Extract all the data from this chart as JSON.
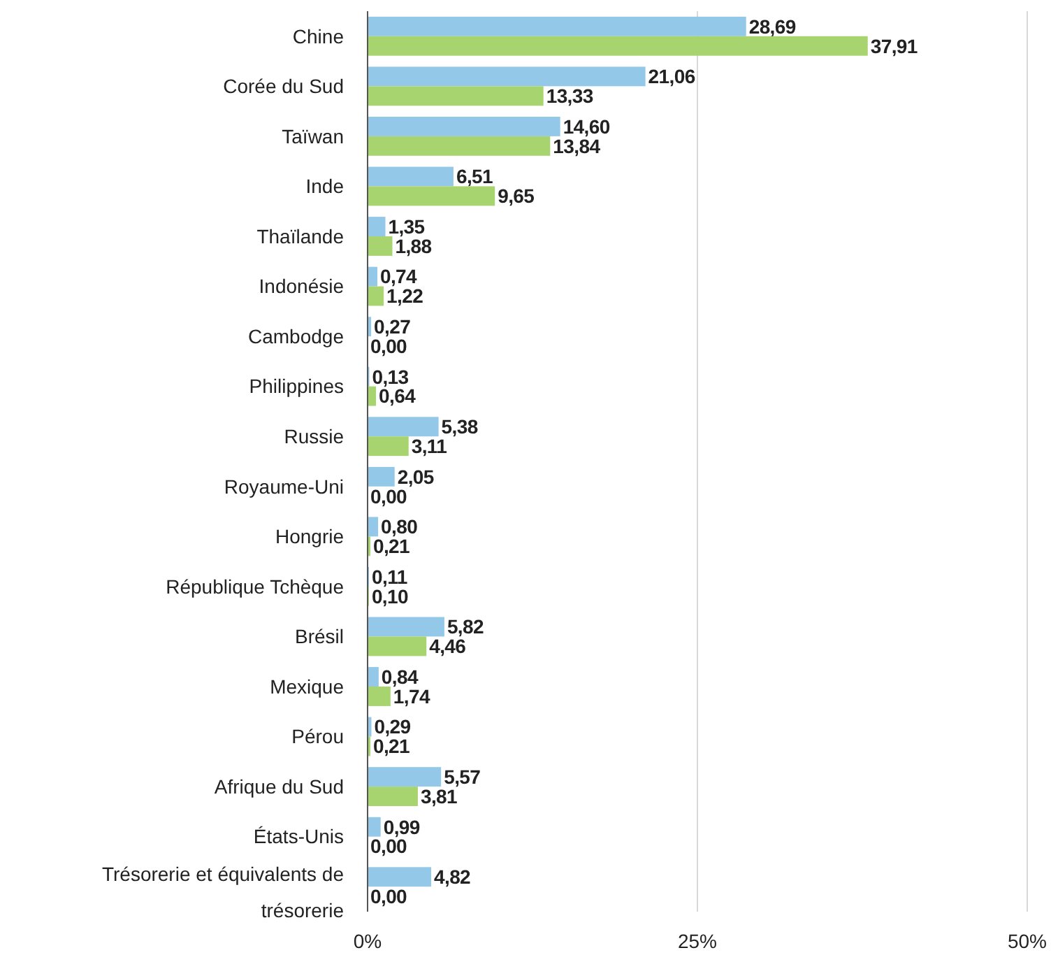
{
  "chart_data": {
    "type": "bar",
    "orientation": "horizontal",
    "categories": [
      "Chine",
      "Corée du Sud",
      "Taïwan",
      "Inde",
      "Thaïlande",
      "Indonésie",
      "Cambodge",
      "Philippines",
      "Russie",
      "Royaume-Uni",
      "Hongrie",
      "République Tchèque",
      "Brésil",
      "Mexique",
      "Pérou",
      "Afrique du Sud",
      "États-Unis",
      "Trésorerie et équivalents de trésorerie"
    ],
    "series": [
      {
        "color": "#94c8e8",
        "values": [
          28.69,
          21.06,
          14.6,
          6.51,
          1.35,
          0.74,
          0.27,
          0.13,
          5.38,
          2.05,
          0.8,
          0.11,
          5.82,
          0.84,
          0.29,
          5.57,
          0.99,
          4.82
        ],
        "value_labels": [
          "28,69",
          "21,06",
          "14,60",
          "6,51",
          "1,35",
          "0,74",
          "0,27",
          "0,13",
          "5,38",
          "2,05",
          "0,80",
          "0,11",
          "5,82",
          "0,84",
          "0,29",
          "5,57",
          "0,99",
          "4,82"
        ]
      },
      {
        "color": "#a8d46f",
        "values": [
          37.91,
          13.33,
          13.84,
          9.65,
          1.88,
          1.22,
          0.0,
          0.64,
          3.11,
          0.0,
          0.21,
          0.1,
          4.46,
          1.74,
          0.21,
          3.81,
          0.0,
          0.0
        ],
        "value_labels": [
          "37,91",
          "13,33",
          "13,84",
          "9,65",
          "1,88",
          "1,22",
          "0,00",
          "0,64",
          "3,11",
          "0,00",
          "0,21",
          "0,10",
          "4,46",
          "1,74",
          "0,21",
          "3,81",
          "0,00",
          "0,00"
        ]
      }
    ],
    "xlim": [
      0,
      50
    ],
    "xticks": [
      {
        "value": 0,
        "label": "0%"
      },
      {
        "value": 25,
        "label": "25%"
      },
      {
        "value": 50,
        "label": "50%"
      }
    ],
    "grid": "x"
  }
}
